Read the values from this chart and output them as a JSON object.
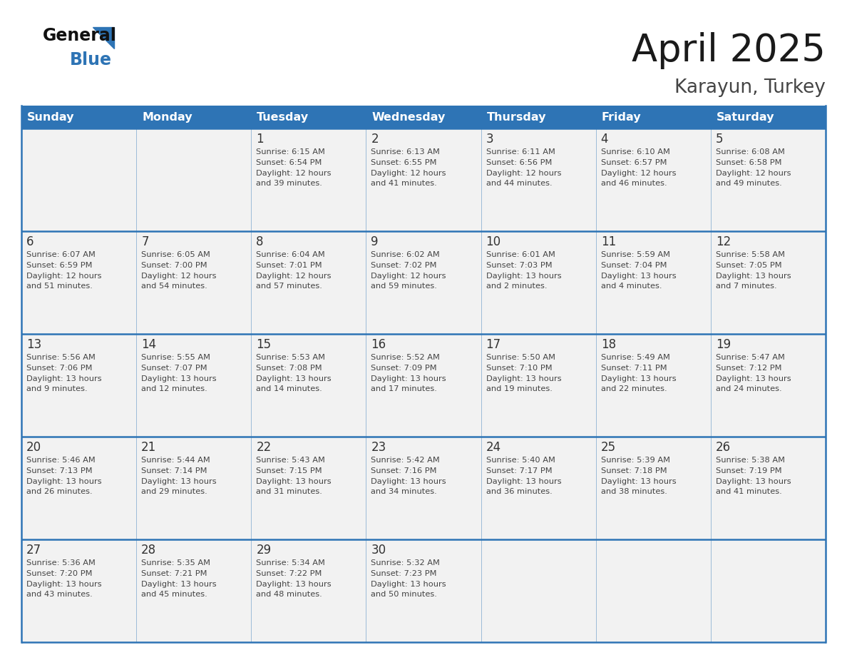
{
  "title": "April 2025",
  "subtitle": "Karayun, Turkey",
  "days_of_week": [
    "Sunday",
    "Monday",
    "Tuesday",
    "Wednesday",
    "Thursday",
    "Friday",
    "Saturday"
  ],
  "header_bg": "#2E74B5",
  "header_text": "#FFFFFF",
  "cell_bg": "#F2F2F2",
  "border_color": "#2E74B5",
  "text_color": "#404040",
  "weeks": [
    [
      {
        "day": "",
        "sunrise": "",
        "sunset": "",
        "daylight": ""
      },
      {
        "day": "",
        "sunrise": "",
        "sunset": "",
        "daylight": ""
      },
      {
        "day": "1",
        "sunrise": "Sunrise: 6:15 AM",
        "sunset": "Sunset: 6:54 PM",
        "daylight": "Daylight: 12 hours\nand 39 minutes."
      },
      {
        "day": "2",
        "sunrise": "Sunrise: 6:13 AM",
        "sunset": "Sunset: 6:55 PM",
        "daylight": "Daylight: 12 hours\nand 41 minutes."
      },
      {
        "day": "3",
        "sunrise": "Sunrise: 6:11 AM",
        "sunset": "Sunset: 6:56 PM",
        "daylight": "Daylight: 12 hours\nand 44 minutes."
      },
      {
        "day": "4",
        "sunrise": "Sunrise: 6:10 AM",
        "sunset": "Sunset: 6:57 PM",
        "daylight": "Daylight: 12 hours\nand 46 minutes."
      },
      {
        "day": "5",
        "sunrise": "Sunrise: 6:08 AM",
        "sunset": "Sunset: 6:58 PM",
        "daylight": "Daylight: 12 hours\nand 49 minutes."
      }
    ],
    [
      {
        "day": "6",
        "sunrise": "Sunrise: 6:07 AM",
        "sunset": "Sunset: 6:59 PM",
        "daylight": "Daylight: 12 hours\nand 51 minutes."
      },
      {
        "day": "7",
        "sunrise": "Sunrise: 6:05 AM",
        "sunset": "Sunset: 7:00 PM",
        "daylight": "Daylight: 12 hours\nand 54 minutes."
      },
      {
        "day": "8",
        "sunrise": "Sunrise: 6:04 AM",
        "sunset": "Sunset: 7:01 PM",
        "daylight": "Daylight: 12 hours\nand 57 minutes."
      },
      {
        "day": "9",
        "sunrise": "Sunrise: 6:02 AM",
        "sunset": "Sunset: 7:02 PM",
        "daylight": "Daylight: 12 hours\nand 59 minutes."
      },
      {
        "day": "10",
        "sunrise": "Sunrise: 6:01 AM",
        "sunset": "Sunset: 7:03 PM",
        "daylight": "Daylight: 13 hours\nand 2 minutes."
      },
      {
        "day": "11",
        "sunrise": "Sunrise: 5:59 AM",
        "sunset": "Sunset: 7:04 PM",
        "daylight": "Daylight: 13 hours\nand 4 minutes."
      },
      {
        "day": "12",
        "sunrise": "Sunrise: 5:58 AM",
        "sunset": "Sunset: 7:05 PM",
        "daylight": "Daylight: 13 hours\nand 7 minutes."
      }
    ],
    [
      {
        "day": "13",
        "sunrise": "Sunrise: 5:56 AM",
        "sunset": "Sunset: 7:06 PM",
        "daylight": "Daylight: 13 hours\nand 9 minutes."
      },
      {
        "day": "14",
        "sunrise": "Sunrise: 5:55 AM",
        "sunset": "Sunset: 7:07 PM",
        "daylight": "Daylight: 13 hours\nand 12 minutes."
      },
      {
        "day": "15",
        "sunrise": "Sunrise: 5:53 AM",
        "sunset": "Sunset: 7:08 PM",
        "daylight": "Daylight: 13 hours\nand 14 minutes."
      },
      {
        "day": "16",
        "sunrise": "Sunrise: 5:52 AM",
        "sunset": "Sunset: 7:09 PM",
        "daylight": "Daylight: 13 hours\nand 17 minutes."
      },
      {
        "day": "17",
        "sunrise": "Sunrise: 5:50 AM",
        "sunset": "Sunset: 7:10 PM",
        "daylight": "Daylight: 13 hours\nand 19 minutes."
      },
      {
        "day": "18",
        "sunrise": "Sunrise: 5:49 AM",
        "sunset": "Sunset: 7:11 PM",
        "daylight": "Daylight: 13 hours\nand 22 minutes."
      },
      {
        "day": "19",
        "sunrise": "Sunrise: 5:47 AM",
        "sunset": "Sunset: 7:12 PM",
        "daylight": "Daylight: 13 hours\nand 24 minutes."
      }
    ],
    [
      {
        "day": "20",
        "sunrise": "Sunrise: 5:46 AM",
        "sunset": "Sunset: 7:13 PM",
        "daylight": "Daylight: 13 hours\nand 26 minutes."
      },
      {
        "day": "21",
        "sunrise": "Sunrise: 5:44 AM",
        "sunset": "Sunset: 7:14 PM",
        "daylight": "Daylight: 13 hours\nand 29 minutes."
      },
      {
        "day": "22",
        "sunrise": "Sunrise: 5:43 AM",
        "sunset": "Sunset: 7:15 PM",
        "daylight": "Daylight: 13 hours\nand 31 minutes."
      },
      {
        "day": "23",
        "sunrise": "Sunrise: 5:42 AM",
        "sunset": "Sunset: 7:16 PM",
        "daylight": "Daylight: 13 hours\nand 34 minutes."
      },
      {
        "day": "24",
        "sunrise": "Sunrise: 5:40 AM",
        "sunset": "Sunset: 7:17 PM",
        "daylight": "Daylight: 13 hours\nand 36 minutes."
      },
      {
        "day": "25",
        "sunrise": "Sunrise: 5:39 AM",
        "sunset": "Sunset: 7:18 PM",
        "daylight": "Daylight: 13 hours\nand 38 minutes."
      },
      {
        "day": "26",
        "sunrise": "Sunrise: 5:38 AM",
        "sunset": "Sunset: 7:19 PM",
        "daylight": "Daylight: 13 hours\nand 41 minutes."
      }
    ],
    [
      {
        "day": "27",
        "sunrise": "Sunrise: 5:36 AM",
        "sunset": "Sunset: 7:20 PM",
        "daylight": "Daylight: 13 hours\nand 43 minutes."
      },
      {
        "day": "28",
        "sunrise": "Sunrise: 5:35 AM",
        "sunset": "Sunset: 7:21 PM",
        "daylight": "Daylight: 13 hours\nand 45 minutes."
      },
      {
        "day": "29",
        "sunrise": "Sunrise: 5:34 AM",
        "sunset": "Sunset: 7:22 PM",
        "daylight": "Daylight: 13 hours\nand 48 minutes."
      },
      {
        "day": "30",
        "sunrise": "Sunrise: 5:32 AM",
        "sunset": "Sunset: 7:23 PM",
        "daylight": "Daylight: 13 hours\nand 50 minutes."
      },
      {
        "day": "",
        "sunrise": "",
        "sunset": "",
        "daylight": ""
      },
      {
        "day": "",
        "sunrise": "",
        "sunset": "",
        "daylight": ""
      },
      {
        "day": "",
        "sunrise": "",
        "sunset": "",
        "daylight": ""
      }
    ]
  ]
}
